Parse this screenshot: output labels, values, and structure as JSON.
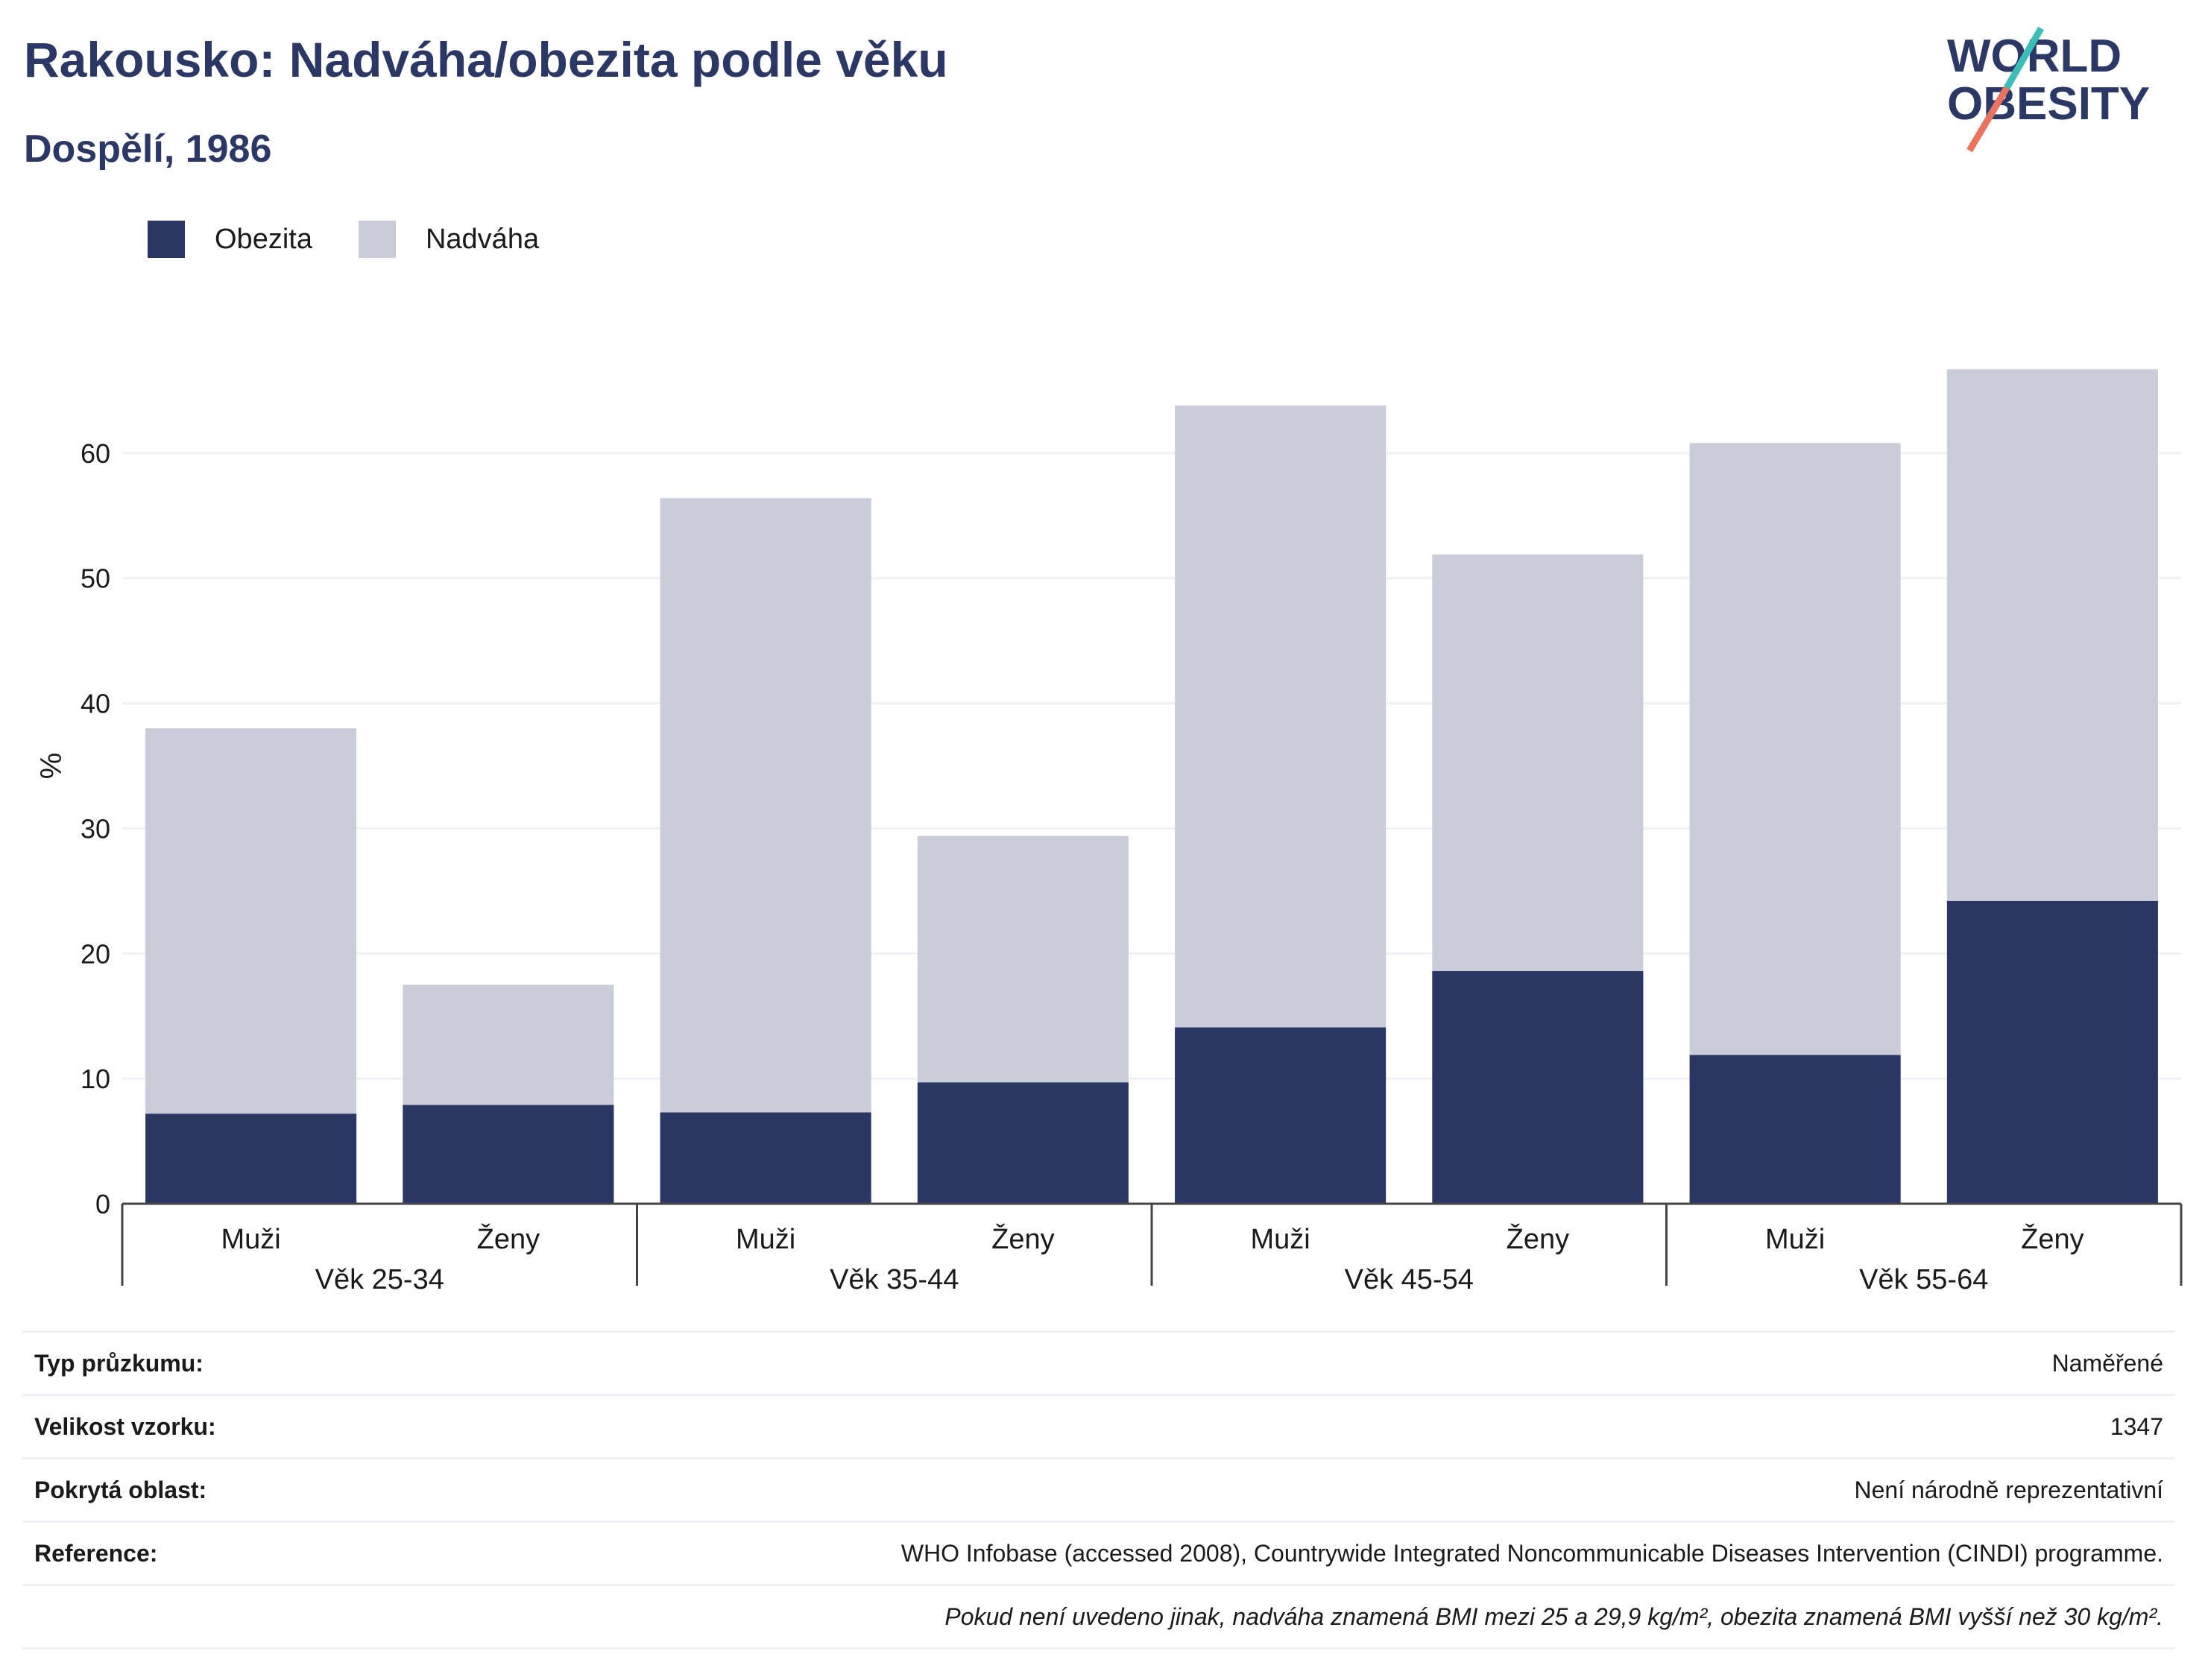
{
  "header": {
    "title": "Rakousko: Nadváha/obezita podle věku",
    "subtitle": "Dospělí, 1986"
  },
  "logo": {
    "line1": "WORLD",
    "line2": "OBESITY"
  },
  "colors": {
    "obesity": "#2a3664",
    "overweight": "#cacdd9",
    "title": "#2b3866",
    "grid": "#eef0f5",
    "axis": "#444444"
  },
  "chart_data": {
    "type": "bar",
    "stacked": true,
    "ylabel": "%",
    "ylim": [
      0,
      70
    ],
    "yticks": [
      0,
      10,
      20,
      30,
      40,
      50,
      60
    ],
    "grid": true,
    "legend_position": "top-left",
    "categories": [
      "Muži",
      "Ženy",
      "Muži",
      "Ženy",
      "Muži",
      "Ženy",
      "Muži",
      "Ženy"
    ],
    "groups": [
      "Věk 25-34",
      "Věk 35-44",
      "Věk 45-54",
      "Věk 55-64"
    ],
    "series": [
      {
        "name": "Obezita",
        "values": [
          7.2,
          7.9,
          7.3,
          9.7,
          14.1,
          18.6,
          11.9,
          24.2
        ]
      },
      {
        "name": "Nadváha",
        "values": [
          30.8,
          9.6,
          49.1,
          19.7,
          49.7,
          33.3,
          48.9,
          42.5
        ]
      }
    ]
  },
  "info": [
    {
      "label": "Typ průzkumu:",
      "value": "Naměřené"
    },
    {
      "label": "Velikost vzorku:",
      "value": "1347"
    },
    {
      "label": "Pokrytá oblast:",
      "value": "Není národně reprezentativní"
    },
    {
      "label": "Reference:",
      "value": "WHO Infobase (accessed 2008), Countrywide Integrated Noncommunicable Diseases Intervention (CINDI) programme."
    }
  ],
  "note": "Pokud není uvedeno jinak, nadváha znamená BMI mezi 25 a 29,9 kg/m², obezita znamená BMI vyšší než 30 kg/m²."
}
